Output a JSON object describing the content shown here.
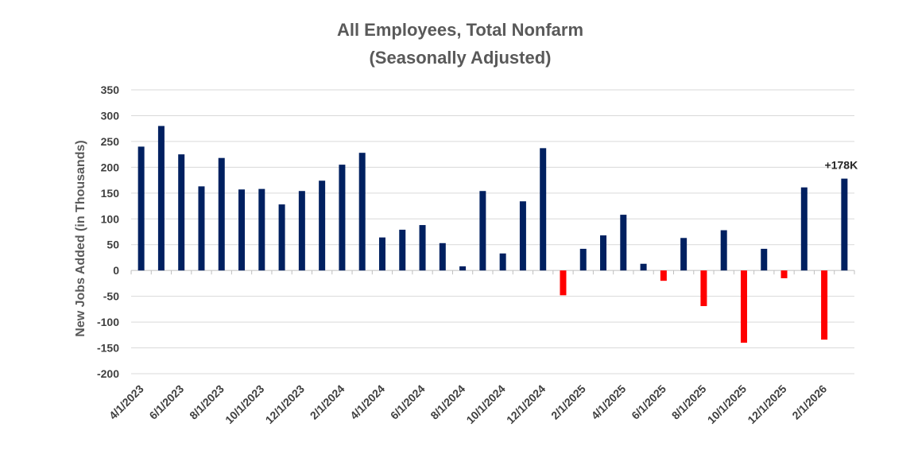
{
  "chart_data": {
    "type": "bar",
    "title_line1": "All Employees, Total Nonfarm",
    "title_line2": "(Seasonally Adjusted)",
    "title": "All Employees, Total Nonfarm (Seasonally Adjusted)",
    "xlabel": "",
    "ylabel": "New Jobs Added (in Thousands)",
    "ylim": [
      -200,
      350
    ],
    "yticks": [
      350,
      300,
      250,
      200,
      150,
      100,
      50,
      0,
      -50,
      -100,
      -150,
      -200
    ],
    "grid": true,
    "legend": "none",
    "colors": {
      "positive": "#002060",
      "negative": "#ff0000"
    },
    "categories": [
      "4/1/2023",
      "5/1/2023",
      "6/1/2023",
      "7/1/2023",
      "8/1/2023",
      "9/1/2023",
      "10/1/2023",
      "11/1/2023",
      "12/1/2023",
      "1/1/2024",
      "2/1/2024",
      "3/1/2024",
      "4/1/2024",
      "5/1/2024",
      "6/1/2024",
      "7/1/2024",
      "8/1/2024",
      "9/1/2024",
      "10/1/2024",
      "11/1/2024",
      "12/1/2024",
      "1/1/2025",
      "2/1/2025",
      "3/1/2025",
      "4/1/2025",
      "5/1/2025",
      "6/1/2025",
      "7/1/2025",
      "8/1/2025",
      "9/1/2025",
      "10/1/2025",
      "11/1/2025",
      "12/1/2025",
      "1/1/2026",
      "2/1/2026",
      "3/1/2026"
    ],
    "tick_labels": [
      "4/1/2023",
      "6/1/2023",
      "8/1/2023",
      "10/1/2023",
      "12/1/2023",
      "2/1/2024",
      "4/1/2024",
      "6/1/2024",
      "8/1/2024",
      "10/1/2024",
      "12/1/2024",
      "2/1/2025",
      "4/1/2025",
      "6/1/2025",
      "8/1/2025",
      "10/1/2025",
      "12/1/2025",
      "2/1/2026"
    ],
    "values": [
      240,
      280,
      225,
      163,
      218,
      157,
      158,
      128,
      154,
      174,
      205,
      228,
      64,
      79,
      88,
      53,
      8,
      154,
      33,
      134,
      237,
      -48,
      42,
      68,
      108,
      13,
      -20,
      63,
      -69,
      78,
      -140,
      42,
      -15,
      161,
      -134,
      178
    ],
    "annotation": {
      "text": "+178K",
      "category": "3/1/2026"
    }
  }
}
